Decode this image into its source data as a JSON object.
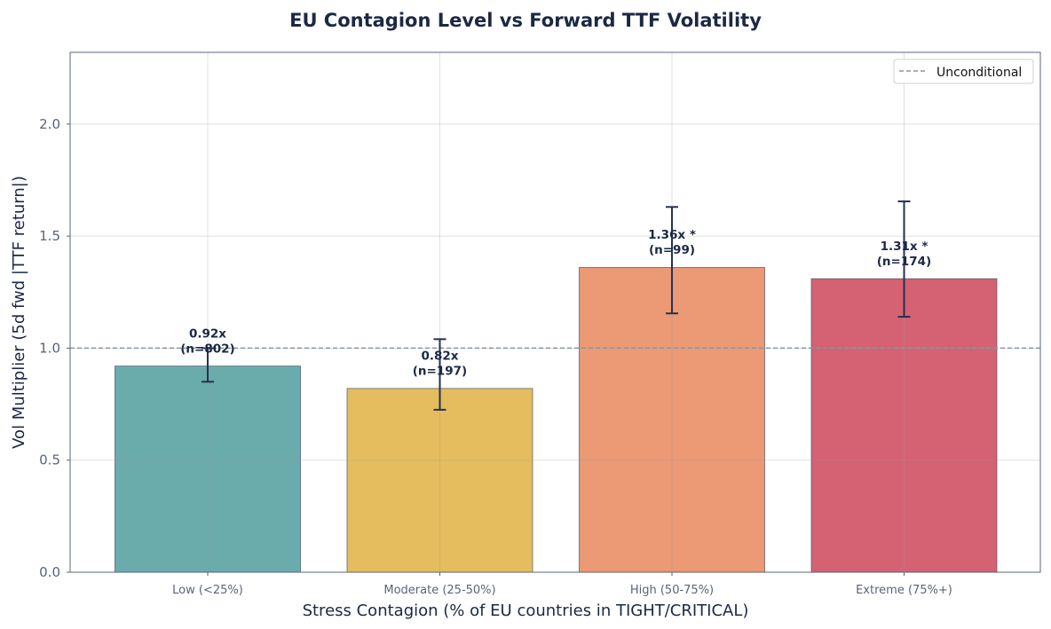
{
  "chart_data": {
    "type": "bar",
    "title": "EU Contagion Level vs Forward TTF Volatility",
    "xlabel": "Stress Contagion (% of EU countries in TIGHT/CRITICAL)",
    "ylabel": "Vol Multiplier (5d fwd |TTF return|)",
    "categories": [
      "Low (<25%)",
      "Moderate (25-50%)",
      "High (50-75%)",
      "Extreme (75%+)"
    ],
    "values": [
      0.92,
      0.82,
      1.36,
      1.31
    ],
    "error_low": [
      0.85,
      0.725,
      1.155,
      1.14
    ],
    "error_high": [
      1.0,
      1.04,
      1.63,
      1.655
    ],
    "bar_labels": [
      [
        "0.92x",
        "(n=802)"
      ],
      [
        "0.82x",
        "(n=197)"
      ],
      [
        "1.36x *",
        "(n=99)"
      ],
      [
        "1.31x *",
        "(n=174)"
      ]
    ],
    "colors": [
      "#6aabab",
      "#e5bd5e",
      "#ec9975",
      "#d46273"
    ],
    "ylim": [
      0,
      2.32
    ],
    "yticks": [
      "0.0",
      "0.5",
      "1.0",
      "1.5",
      "2.0"
    ],
    "reference_line": {
      "value": 1.0,
      "label": "Unconditional",
      "color": "#8a93a6",
      "style": "dashed"
    },
    "legend": "top-right",
    "grid": true
  }
}
